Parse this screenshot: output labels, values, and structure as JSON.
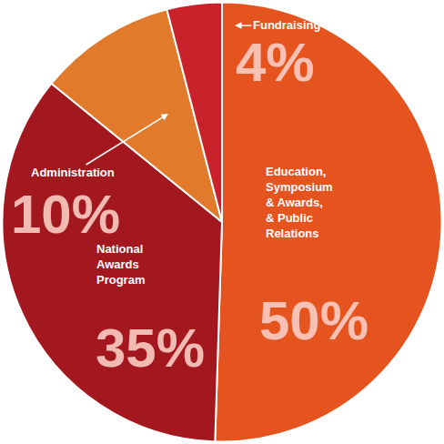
{
  "chart_data": {
    "type": "pie",
    "categories": [
      "Education, Symposium & Awards, & Public Relations",
      "National Awards Program",
      "Administration",
      "Fundraising"
    ],
    "values": [
      50,
      35,
      10,
      4
    ],
    "value_labels": [
      "50%",
      "35%",
      "10%",
      "4%"
    ],
    "colors": [
      "#e5531f",
      "#a3171f",
      "#e27a2c",
      "#c9222b"
    ],
    "data_labels": true
  }
}
